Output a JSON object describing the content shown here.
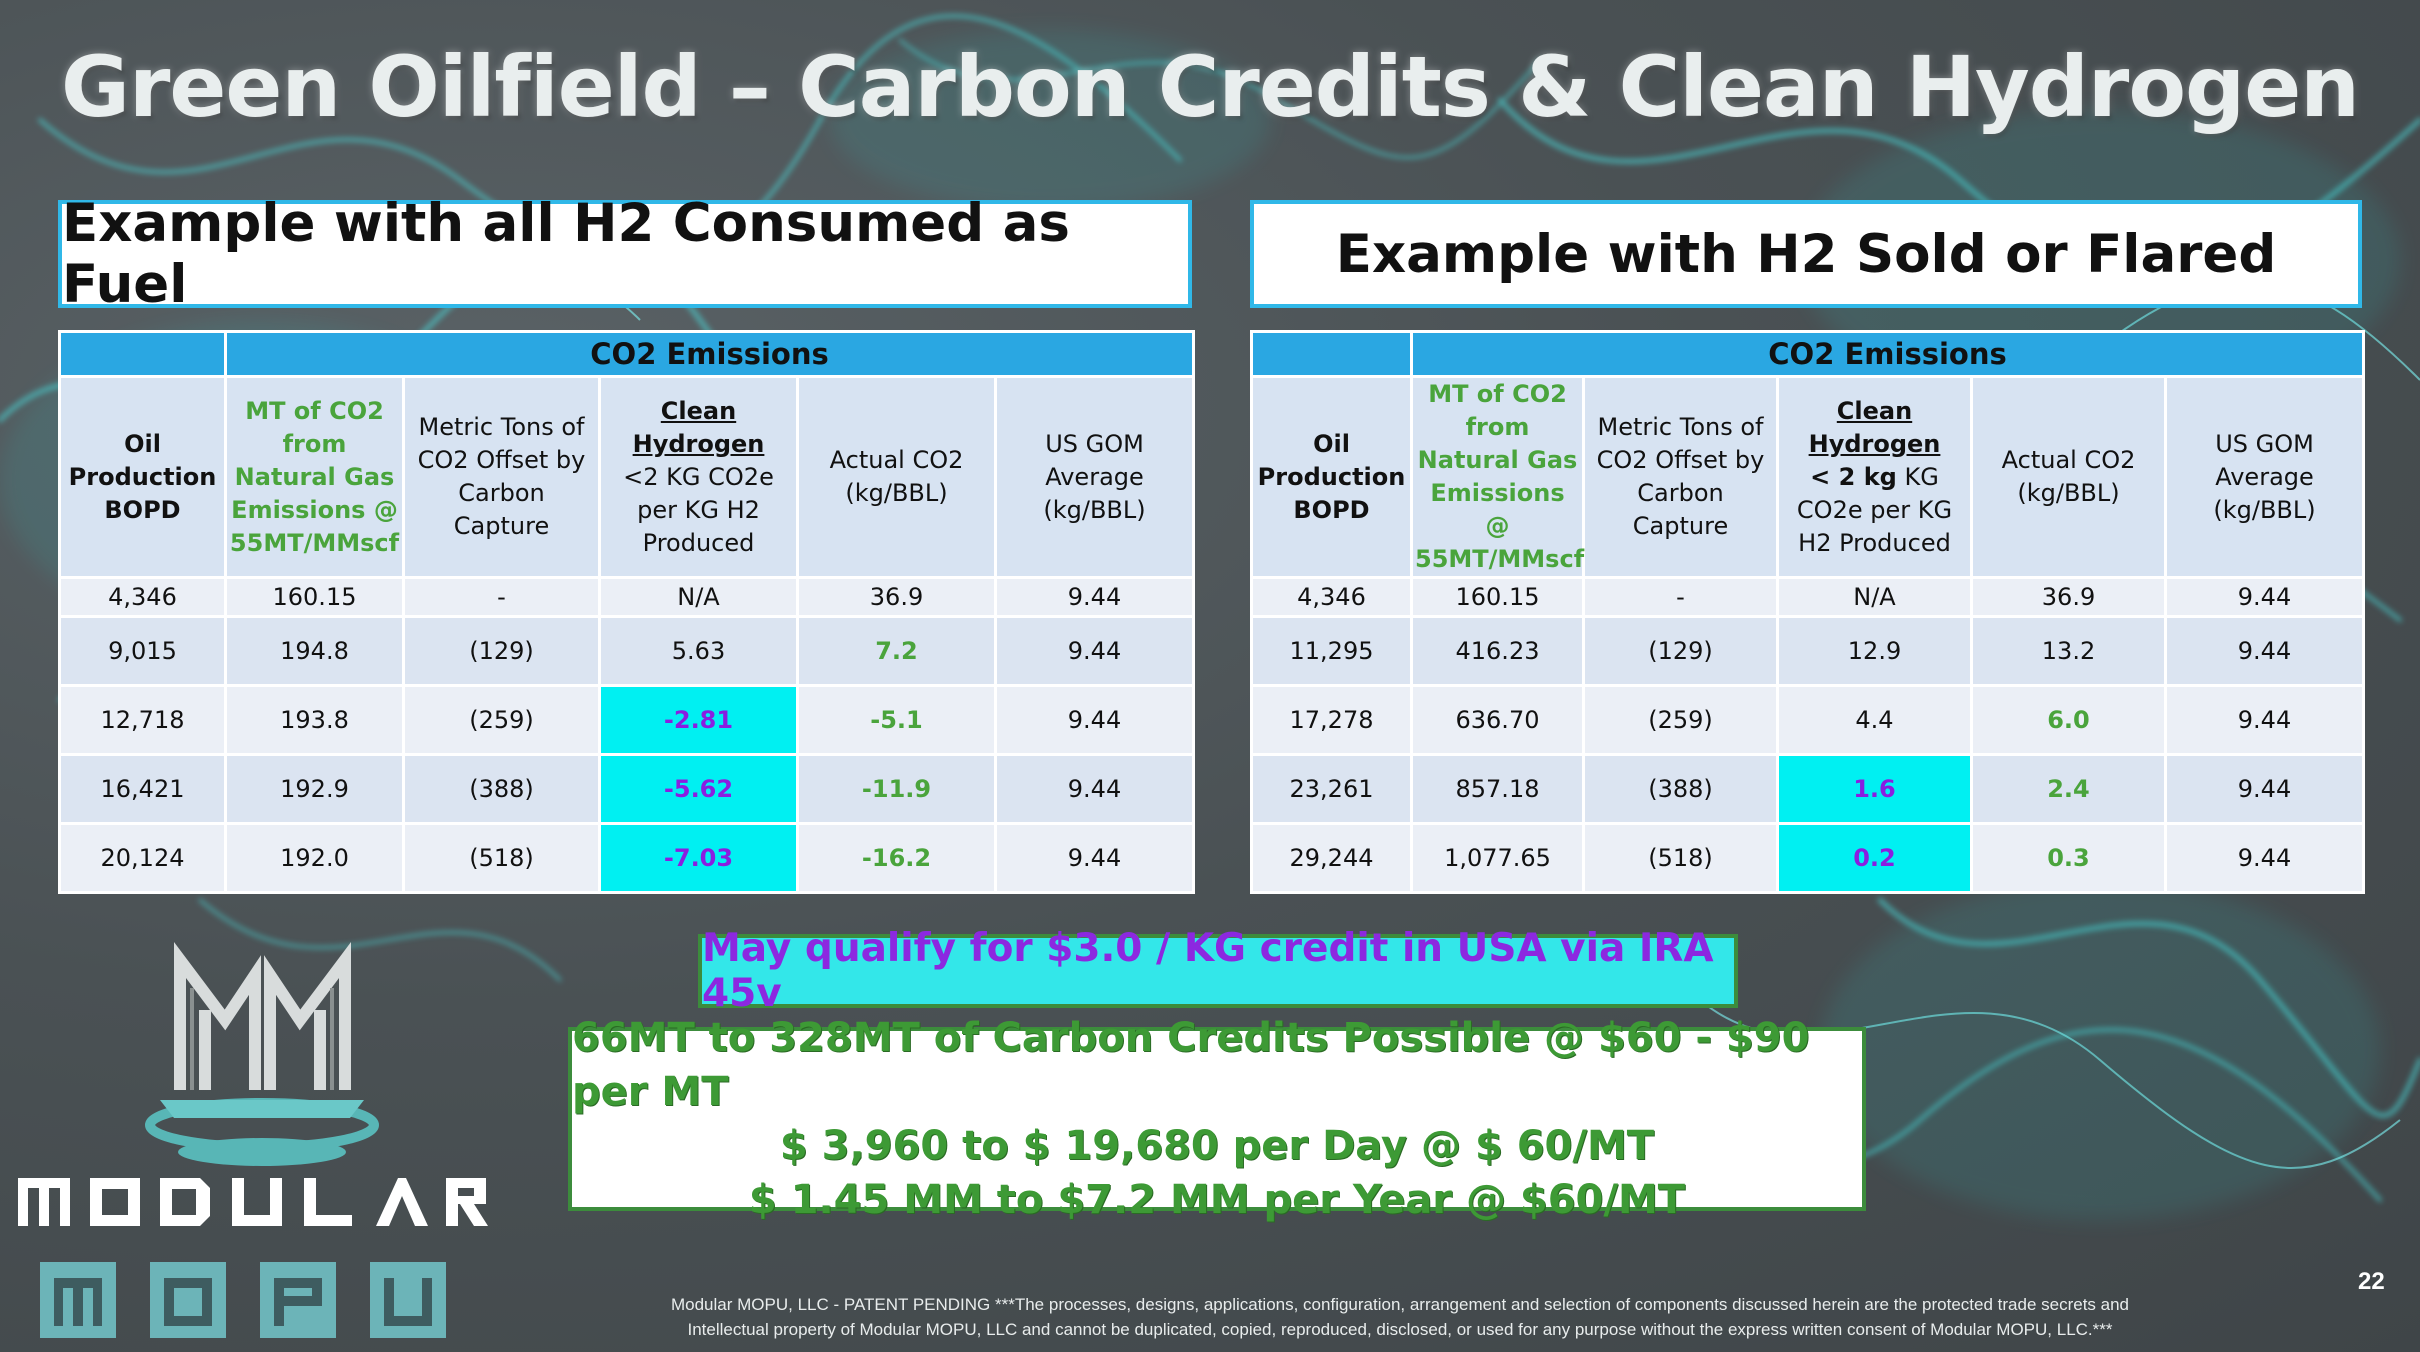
{
  "slide": {
    "title": "Green Oilfield – Carbon Credits & Clean Hydrogen",
    "page_number": "22"
  },
  "left_panel": {
    "title": "Example with all H2 Consumed as Fuel",
    "band_label": "CO2 Emissions",
    "headers": {
      "oil": "Oil Production BOPD",
      "mt_co2": "MT of CO2 from Natural Gas Emissions @ 55MT/MMscf",
      "offset": "Metric Tons of CO2 Offset by Carbon Capture",
      "clean_title": "Clean Hydrogen",
      "clean_sub": "<2 KG CO2e per KG H2 Produced",
      "actual": "Actual CO2 (kg/BBL)",
      "gom": "US GOM Average (kg/BBL)"
    },
    "rows": [
      {
        "oil": "4,346",
        "mt": "160.15",
        "offset": "-",
        "clean": "N/A",
        "actual": "36.9",
        "gom": "9.44"
      },
      {
        "oil": "9,015",
        "mt": "194.8",
        "offset": "(129)",
        "clean": "5.63",
        "actual": "7.2",
        "gom": "9.44"
      },
      {
        "oil": "12,718",
        "mt": "193.8",
        "offset": "(259)",
        "clean": "-2.81",
        "actual": "-5.1",
        "gom": "9.44"
      },
      {
        "oil": "16,421",
        "mt": "192.9",
        "offset": "(388)",
        "clean": "-5.62",
        "actual": "-11.9",
        "gom": "9.44"
      },
      {
        "oil": "20,124",
        "mt": "192.0",
        "offset": "(518)",
        "clean": "-7.03",
        "actual": "-16.2",
        "gom": "9.44"
      }
    ]
  },
  "right_panel": {
    "title": "Example with H2 Sold or Flared",
    "band_label": "CO2 Emissions",
    "headers": {
      "oil": "Oil Production BOPD",
      "mt_co2": "MT of CO2 from Natural Gas Emissions @ 55MT/MMscf",
      "offset": "Metric Tons of CO2 Offset by Carbon Capture",
      "clean_title": "Clean Hydrogen",
      "clean_bold": "< 2 kg",
      "clean_sub": "KG CO2e per KG H2 Produced",
      "actual": "Actual CO2 (kg/BBL)",
      "gom": "US GOM Average (kg/BBL)"
    },
    "rows": [
      {
        "oil": "4,346",
        "mt": "160.15",
        "offset": "-",
        "clean": "N/A",
        "actual": "36.9",
        "gom": "9.44"
      },
      {
        "oil": "11,295",
        "mt": "416.23",
        "offset": "(129)",
        "clean": "12.9",
        "actual": "13.2",
        "gom": "9.44"
      },
      {
        "oil": "17,278",
        "mt": "636.70",
        "offset": "(259)",
        "clean": "4.4",
        "actual": "6.0",
        "gom": "9.44"
      },
      {
        "oil": "23,261",
        "mt": "857.18",
        "offset": "(388)",
        "clean": "1.6",
        "actual": "2.4",
        "gom": "9.44"
      },
      {
        "oil": "29,244",
        "mt": "1,077.65",
        "offset": "(518)",
        "clean": "0.2",
        "actual": "0.3",
        "gom": "9.44"
      }
    ]
  },
  "ira_callout": "May qualify for $3.0 / KG credit in USA via IRA 45v",
  "credits_box": {
    "line1": "66MT to 328MT of Carbon Credits Possible @ $60 - $90 per MT",
    "line2": "$ 3,960 to $ 19,680 per Day @ $ 60/MT",
    "line3": "$ 1.45 MM to $7.2 MM per Year @ $60/MT"
  },
  "logo": {
    "word1": "MODULAR",
    "word2": "MOPU",
    "icon": "modular-mm-logo-icon"
  },
  "footer": {
    "line1": "Modular MOPU, LLC - PATENT PENDING ***The processes, designs, applications, configuration, arrangement and selection of components discussed herein are the protected trade secrets and",
    "line2": "Intellectual property of Modular MOPU, LLC and cannot be duplicated, copied, reproduced, disclosed, or used for any purpose without the express written consent of Modular MOPU, LLC.***"
  },
  "colors": {
    "band_blue": "#2aa7e2",
    "header_fill": "#d7e3f2",
    "highlight_cyan": "#00f0f2",
    "highlight_text_purple": "#8a1ee0",
    "green_text": "#4aa43c",
    "callout_purple": "#8c28e0",
    "callout_cyan": "#33e7e9"
  }
}
